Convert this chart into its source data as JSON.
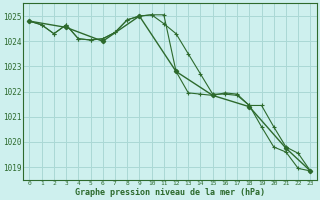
{
  "title": "Graphe pression niveau de la mer (hPa)",
  "bg_color": "#cef0ee",
  "grid_color": "#aad8d5",
  "line_color": "#2d6a2d",
  "series1": {
    "x": [
      0,
      1,
      2,
      3,
      4,
      5,
      6,
      7,
      8,
      9,
      10,
      11,
      12,
      13,
      14,
      15,
      16,
      17,
      18,
      19,
      20,
      21,
      22,
      23
    ],
    "y": [
      1024.8,
      1024.65,
      1024.3,
      1024.65,
      1024.1,
      1024.05,
      1024.1,
      1024.35,
      1024.85,
      1025.0,
      1025.05,
      1025.05,
      1022.8,
      1021.95,
      1021.9,
      1021.85,
      1021.95,
      1021.9,
      1021.45,
      1020.6,
      1019.8,
      1019.6,
      1018.95,
      1018.85
    ]
  },
  "series2": {
    "x": [
      0,
      1,
      2,
      3,
      4,
      5,
      6,
      7,
      8,
      9,
      10,
      11,
      12,
      13,
      14,
      15,
      16,
      17,
      18,
      19,
      20,
      21,
      22,
      23
    ],
    "y": [
      1024.8,
      1024.65,
      1024.3,
      1024.65,
      1024.1,
      1024.05,
      1024.1,
      1024.35,
      1024.85,
      1025.0,
      1025.05,
      1024.7,
      1024.3,
      1023.5,
      1022.7,
      1021.9,
      1021.9,
      1021.85,
      1021.45,
      1021.45,
      1020.6,
      1019.8,
      1019.55,
      1018.85
    ]
  },
  "series3": {
    "x": [
      0,
      3,
      6,
      9,
      12,
      15,
      18,
      21,
      23
    ],
    "y": [
      1024.8,
      1024.55,
      1024.0,
      1025.0,
      1022.8,
      1021.85,
      1021.4,
      1019.75,
      1018.85
    ]
  },
  "ylim": [
    1018.5,
    1025.5
  ],
  "yticks": [
    1019,
    1020,
    1021,
    1022,
    1023,
    1024,
    1025
  ],
  "xlim": [
    -0.5,
    23.5
  ],
  "xticks": [
    0,
    1,
    2,
    3,
    4,
    5,
    6,
    7,
    8,
    9,
    10,
    11,
    12,
    13,
    14,
    15,
    16,
    17,
    18,
    19,
    20,
    21,
    22,
    23
  ],
  "xtick_labels": [
    "0",
    "1",
    "2",
    "3",
    "4",
    "5",
    "6",
    "7",
    "8",
    "9",
    "10",
    "11",
    "12",
    "13",
    "14",
    "15",
    "16",
    "17",
    "18",
    "19",
    "20",
    "21",
    "22",
    "23"
  ]
}
